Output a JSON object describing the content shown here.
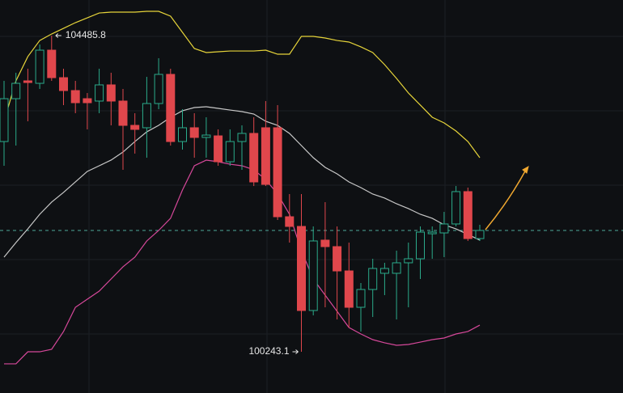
{
  "chart_data": {
    "type": "candlestick",
    "ylim": [
      99690,
      104963
    ],
    "up_color": "#2bab8b",
    "down_color": "#e0474c",
    "open": [
      103064,
      103639,
      103878,
      103845,
      104290,
      103921,
      103748,
      103639,
      103607,
      103824,
      103607,
      103281,
      103249,
      103574,
      103965,
      103064,
      103249,
      103119,
      103140,
      102793,
      103064,
      103173,
      103249,
      103249,
      102055,
      101925,
      100797,
      101741,
      101654,
      101328,
      100840,
      101079,
      101296,
      101296,
      101437,
      101491,
      101827,
      101838,
      101958,
      102392,
      101762
    ],
    "high": [
      103878,
      103987,
      104041,
      104366,
      104485.8,
      104041,
      103878,
      103715,
      104041,
      103987,
      103770,
      103444,
      103932,
      104182,
      104041,
      103498,
      103444,
      103390,
      103227,
      103227,
      103281,
      103390,
      103607,
      103553,
      102359,
      102359,
      101925,
      102251,
      101925,
      101708,
      101166,
      101491,
      101437,
      101600,
      101708,
      101925,
      101925,
      102120,
      102467,
      102446,
      101947
    ],
    "low": [
      102739,
      103010,
      103336,
      103770,
      103878,
      103553,
      103444,
      103227,
      103444,
      103281,
      102685,
      102902,
      102847,
      103498,
      103010,
      102956,
      102847,
      102847,
      102739,
      102739,
      102685,
      102467,
      102467,
      102012,
      101708,
      100243.1,
      100732,
      100840,
      100677,
      100569,
      100515,
      100710,
      101003,
      100677,
      100840,
      101220,
      101491,
      101513,
      101925,
      101730,
      101730
    ],
    "close": [
      103639,
      103845,
      103856,
      104290,
      103921,
      103748,
      103585,
      103585,
      103824,
      103607,
      103281,
      103227,
      103574,
      103965,
      103064,
      103249,
      103119,
      103151,
      102793,
      103064,
      103173,
      102522,
      102489,
      102055,
      101925,
      100797,
      101730,
      101654,
      101328,
      100840,
      101079,
      101361,
      101361,
      101437,
      101491,
      101849,
      101849,
      101958,
      102392,
      101762,
      101871
    ],
    "lines": [
      {
        "color": "#e6d43a",
        "values": [
          103336,
          103878,
          104204,
          104420,
          104507,
          104583,
          104659,
          104724,
          104789,
          104800,
          104800,
          104800,
          104811,
          104811,
          104746,
          104529,
          104312,
          104258,
          104269,
          104279,
          104279,
          104279,
          104290,
          104236,
          104236,
          104475,
          104475,
          104453,
          104420,
          104399,
          104334,
          104258,
          104095,
          103911,
          103715,
          103553,
          103390,
          103314,
          103205,
          103064,
          102847
        ]
      },
      {
        "color": "#c8c8c8",
        "values": [
          101513,
          101708,
          101892,
          102088,
          102251,
          102381,
          102522,
          102663,
          102739,
          102815,
          102923,
          103064,
          103194,
          103281,
          103390,
          103477,
          103520,
          103531,
          103509,
          103487,
          103466,
          103433,
          103336,
          103281,
          103173,
          103010,
          102847,
          102717,
          102630,
          102522,
          102446,
          102359,
          102305,
          102229,
          102164,
          102088,
          102034,
          101947,
          101892,
          101817,
          101741
        ]
      },
      {
        "color": "#d6489a",
        "values": [
          100081,
          100081,
          100243,
          100243,
          100276,
          100515,
          100840,
          100949,
          101057,
          101220,
          101383,
          101513,
          101730,
          101871,
          102034,
          102413,
          102739,
          102815,
          102793,
          102760,
          102739,
          102685,
          102554,
          102359,
          102088,
          101600,
          101220,
          101003,
          100786,
          100569,
          100482,
          100406,
          100363,
          100330,
          100341,
          100373,
          100406,
          100428,
          100482,
          100515,
          100601
        ]
      }
    ],
    "price_line": {
      "value": 101871,
      "color": "#4fa89a"
    }
  }
}
